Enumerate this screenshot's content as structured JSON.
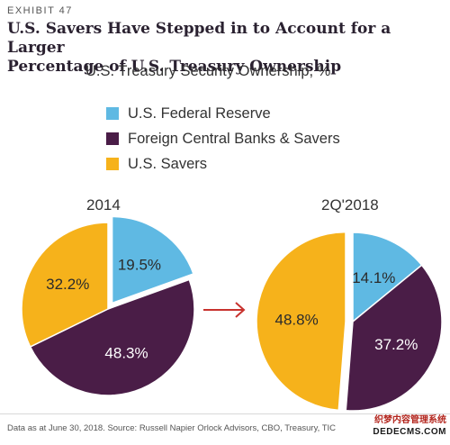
{
  "header": {
    "exhibit": "EXHIBIT 47",
    "title_line1": "U.S. Savers Have Stepped in to Account for a Larger",
    "title_line2": "Percentage of U.S. Treasury Ownership",
    "subtitle": "U.S. Treasury Security Ownership, %"
  },
  "legend": [
    {
      "label": "U.S. Federal Reserve",
      "color": "#5fb9e3"
    },
    {
      "label": "Foreign Central Banks & Savers",
      "color": "#4a1d47"
    },
    {
      "label": "U.S. Savers",
      "color": "#f6b21b"
    }
  ],
  "chart_data": [
    {
      "type": "pie",
      "title": "2014",
      "slices": [
        {
          "label": "U.S. Federal Reserve",
          "value": 19.5,
          "display": "19.5%",
          "color": "#5fb9e3",
          "exploded": true
        },
        {
          "label": "Foreign Central Banks & Savers",
          "value": 48.3,
          "display": "48.3%",
          "color": "#4a1d47",
          "exploded": false
        },
        {
          "label": "U.S. Savers",
          "value": 32.2,
          "display": "32.2%",
          "color": "#f6b21b",
          "exploded": false
        }
      ]
    },
    {
      "type": "pie",
      "title": "2Q'2018",
      "slices": [
        {
          "label": "U.S. Federal Reserve",
          "value": 14.1,
          "display": "14.1%",
          "color": "#5fb9e3",
          "exploded": false
        },
        {
          "label": "Foreign Central Banks & Savers",
          "value": 37.2,
          "display": "37.2%",
          "color": "#4a1d47",
          "exploded": false
        },
        {
          "label": "U.S. Savers",
          "value": 48.8,
          "display": "48.8%",
          "color": "#f6b21b",
          "exploded": true
        }
      ]
    }
  ],
  "arrow_color": "#c8322e",
  "footer": {
    "source": "Data as at June 30, 2018. Source: Russell Napier Orlock Advisors, CBO, Treasury, TIC",
    "watermark_top": "织梦内容管理系统",
    "watermark_bottom": "DEDECMS.COM"
  }
}
